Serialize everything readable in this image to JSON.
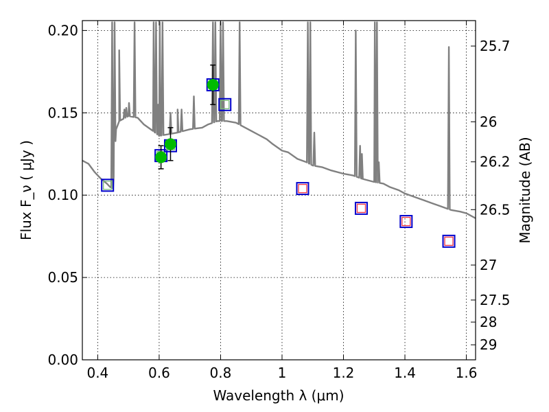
{
  "chart_data": {
    "type": "scatter",
    "title": "",
    "xlabel": "Wavelength  λ (μm)",
    "ylabel": "Flux  F_ν  ( μJy )",
    "ylabel_right": "Magnitude (AB)",
    "xlim": [
      0.35,
      1.63
    ],
    "ylim": [
      0.0,
      0.206
    ],
    "grid": true,
    "x_ticks": [
      0.4,
      0.6,
      0.8,
      1.0,
      1.2,
      1.4,
      1.6
    ],
    "x_tick_labels": [
      "0.4",
      "0.6",
      "0.8",
      "1",
      "1.2",
      "1.4",
      "1.6"
    ],
    "y_ticks": [
      0.0,
      0.05,
      0.1,
      0.15,
      0.2
    ],
    "y_tick_labels": [
      "0.00",
      "0.05",
      "0.10",
      "0.15",
      "0.20"
    ],
    "right_ticks": [
      {
        "label": "25.7",
        "mag": 25.7
      },
      {
        "label": "26",
        "mag": 26.0
      },
      {
        "label": "26.2",
        "mag": 26.2
      },
      {
        "label": "26.5",
        "mag": 26.5
      },
      {
        "label": "27",
        "mag": 27.0
      },
      {
        "label": "27.5",
        "mag": 27.5
      },
      {
        "label": "28",
        "mag": 28.0
      },
      {
        "label": "29",
        "mag": 29.0
      }
    ],
    "colors": {
      "spectrum": "#808080",
      "observed": "#00bb00",
      "model_box": "#0000cc",
      "model_optical": "#77bb77",
      "model_ir": "#ee3344"
    },
    "series": [
      {
        "role": "model-spectrum",
        "continuum": [
          [
            0.35,
            0.121
          ],
          [
            0.37,
            0.119
          ],
          [
            0.39,
            0.114
          ],
          [
            0.41,
            0.11
          ],
          [
            0.43,
            0.107
          ],
          [
            0.44,
            0.105
          ],
          [
            0.45,
            0.104
          ],
          [
            0.46,
            0.14
          ],
          [
            0.47,
            0.145
          ],
          [
            0.5,
            0.148
          ],
          [
            0.53,
            0.147
          ],
          [
            0.55,
            0.143
          ],
          [
            0.58,
            0.139
          ],
          [
            0.6,
            0.136
          ],
          [
            0.63,
            0.137
          ],
          [
            0.66,
            0.138
          ],
          [
            0.7,
            0.14
          ],
          [
            0.74,
            0.141
          ],
          [
            0.76,
            0.143
          ],
          [
            0.79,
            0.145
          ],
          [
            0.82,
            0.145
          ],
          [
            0.85,
            0.144
          ],
          [
            0.88,
            0.141
          ],
          [
            0.9,
            0.139
          ],
          [
            0.92,
            0.137
          ],
          [
            0.95,
            0.134
          ],
          [
            0.97,
            0.131
          ],
          [
            1.0,
            0.127
          ],
          [
            1.02,
            0.126
          ],
          [
            1.05,
            0.122
          ],
          [
            1.08,
            0.12
          ],
          [
            1.1,
            0.118
          ],
          [
            1.13,
            0.117
          ],
          [
            1.16,
            0.115
          ],
          [
            1.2,
            0.113
          ],
          [
            1.23,
            0.112
          ],
          [
            1.26,
            0.11
          ],
          [
            1.3,
            0.108
          ],
          [
            1.33,
            0.107
          ],
          [
            1.35,
            0.105
          ],
          [
            1.38,
            0.103
          ],
          [
            1.4,
            0.101
          ],
          [
            1.43,
            0.099
          ],
          [
            1.46,
            0.097
          ],
          [
            1.49,
            0.095
          ],
          [
            1.52,
            0.093
          ],
          [
            1.55,
            0.091
          ],
          [
            1.58,
            0.09
          ],
          [
            1.6,
            0.089
          ],
          [
            1.63,
            0.086
          ]
        ],
        "lines": [
          [
            0.447,
            0.205
          ],
          [
            0.455,
            0.205
          ],
          [
            0.47,
            0.188
          ],
          [
            0.487,
            0.152
          ],
          [
            0.493,
            0.153
          ],
          [
            0.502,
            0.156
          ],
          [
            0.52,
            0.205
          ],
          [
            0.582,
            0.205
          ],
          [
            0.59,
            0.205
          ],
          [
            0.597,
            0.155
          ],
          [
            0.602,
            0.205
          ],
          [
            0.611,
            0.205
          ],
          [
            0.637,
            0.15
          ],
          [
            0.66,
            0.152
          ],
          [
            0.673,
            0.152
          ],
          [
            0.713,
            0.16
          ],
          [
            0.775,
            0.205
          ],
          [
            0.783,
            0.205
          ],
          [
            0.8,
            0.205
          ],
          [
            0.808,
            0.205
          ],
          [
            0.862,
            0.205
          ],
          [
            1.084,
            0.205
          ],
          [
            1.092,
            0.205
          ],
          [
            1.105,
            0.138
          ],
          [
            1.24,
            0.2
          ],
          [
            1.254,
            0.13
          ],
          [
            1.26,
            0.125
          ],
          [
            1.302,
            0.205
          ],
          [
            1.309,
            0.205
          ],
          [
            1.315,
            0.12
          ],
          [
            1.543,
            0.19
          ]
        ]
      },
      {
        "role": "observed-photometry",
        "points": [
          {
            "x": 0.606,
            "y": 0.123,
            "err": 0.007
          },
          {
            "x": 0.637,
            "y": 0.131,
            "err": 0.01
          },
          {
            "x": 0.775,
            "y": 0.167,
            "err": 0.012
          }
        ]
      },
      {
        "role": "model-photometry",
        "points": [
          {
            "x": 0.432,
            "y": 0.106,
            "band": "optical"
          },
          {
            "x": 0.606,
            "y": 0.124,
            "band": "optical"
          },
          {
            "x": 0.637,
            "y": 0.13,
            "band": "optical"
          },
          {
            "x": 0.775,
            "y": 0.167,
            "band": "optical"
          },
          {
            "x": 0.814,
            "y": 0.155,
            "band": "optical"
          },
          {
            "x": 1.067,
            "y": 0.104,
            "band": "ir"
          },
          {
            "x": 1.258,
            "y": 0.092,
            "band": "ir"
          },
          {
            "x": 1.404,
            "y": 0.084,
            "band": "ir"
          },
          {
            "x": 1.543,
            "y": 0.072,
            "band": "ir"
          }
        ]
      }
    ]
  }
}
